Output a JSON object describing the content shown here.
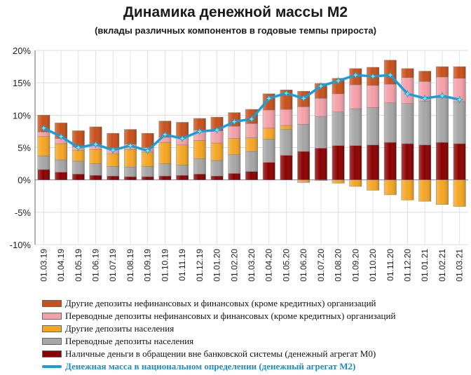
{
  "chart_data": {
    "type": "bar",
    "stacked": true,
    "title": "Динамика денежной массы М2",
    "subtitle": "(вклады различных компонентов в годовые темпы прироста)",
    "ylim": [
      -10,
      20
    ],
    "yticks": [
      -10,
      -5,
      0,
      5,
      10,
      15,
      20
    ],
    "ytick_labels": [
      "-10%",
      "-5%",
      "0%",
      "5%",
      "10%",
      "15%",
      "20%"
    ],
    "categories": [
      "01.03.19",
      "01.04.19",
      "01.05.19",
      "01.06.19",
      "01.07.19",
      "01.08.19",
      "01.09.19",
      "01.10.19",
      "01.11.19",
      "01.12.19",
      "01.01.20",
      "01.02.20",
      "01.03.20",
      "01.04.20",
      "01.05.20",
      "01.06.20",
      "01.07.20",
      "01.08.20",
      "01.09.20",
      "01.10.20",
      "01.11.20",
      "01.12.20",
      "01.01.21",
      "01.02.21",
      "01.03.21"
    ],
    "series": [
      {
        "name": "Наличные деньги в обращении вне банковской системы (денежный агрегат М0)",
        "color": "#8b0000",
        "values": [
          1.6,
          1.2,
          0.9,
          0.7,
          0.6,
          0.5,
          0.5,
          0.6,
          0.7,
          0.9,
          0.6,
          1.0,
          1.3,
          2.7,
          3.8,
          4.4,
          4.9,
          5.3,
          5.3,
          5.4,
          5.8,
          5.6,
          5.4,
          5.8,
          5.6
        ]
      },
      {
        "name": "Переводные депозиты населения",
        "color": "#a6a6a6",
        "values": [
          2.1,
          1.9,
          2.0,
          1.8,
          1.5,
          1.5,
          1.6,
          1.9,
          1.6,
          2.4,
          2.4,
          2.9,
          3.1,
          3.6,
          4.0,
          4.2,
          4.9,
          5.2,
          5.7,
          5.8,
          6.1,
          6.2,
          6.8,
          6.9,
          6.5
        ]
      },
      {
        "name": "Другие депозиты населения",
        "color": "#f5a623",
        "values": [
          3.0,
          2.5,
          1.7,
          2.2,
          1.9,
          2.7,
          2.2,
          3.3,
          3.1,
          2.8,
          2.7,
          2.5,
          2.1,
          1.7,
          0.6,
          -0.4,
          -0.1,
          -0.5,
          -1.0,
          -1.6,
          -2.3,
          -3.1,
          -3.3,
          -3.8,
          -4.1
        ]
      },
      {
        "name": "Переводные депозиты нефинансовых и финансовых (кроме кредитных) организаций",
        "color": "#f4a0a8",
        "values": [
          0.7,
          0.8,
          0.5,
          0.8,
          0.9,
          0.8,
          0.7,
          0.8,
          1.2,
          1.6,
          1.9,
          1.9,
          2.2,
          2.8,
          2.5,
          2.7,
          2.8,
          2.8,
          3.7,
          3.4,
          2.9,
          4.0,
          3.0,
          3.2,
          3.6
        ]
      },
      {
        "name": "Другие депозиты нефинансовых и финансовых (кроме кредитных) организаций",
        "color": "#c9501a",
        "values": [
          2.6,
          2.4,
          2.5,
          2.7,
          2.3,
          2.3,
          2.2,
          2.5,
          2.3,
          1.8,
          2.1,
          2.1,
          2.2,
          2.5,
          3.0,
          2.4,
          2.3,
          2.4,
          2.5,
          2.8,
          3.7,
          1.4,
          1.6,
          1.6,
          1.8
        ]
      }
    ],
    "line": {
      "name": "Денежная масса в национальном определении (денежный агрегат М2)",
      "color": "#1a9ed8",
      "values": [
        8.0,
        6.7,
        5.0,
        5.5,
        4.6,
        5.3,
        4.5,
        7.0,
        6.4,
        7.5,
        7.7,
        9.0,
        9.4,
        12.6,
        13.4,
        12.6,
        14.5,
        15.3,
        16.2,
        16.0,
        16.2,
        13.3,
        12.6,
        13.0,
        12.4
      ]
    },
    "legend_order": [
      4,
      3,
      2,
      1,
      0
    ],
    "legend_position": "bottom",
    "xlabel": "",
    "ylabel": ""
  }
}
